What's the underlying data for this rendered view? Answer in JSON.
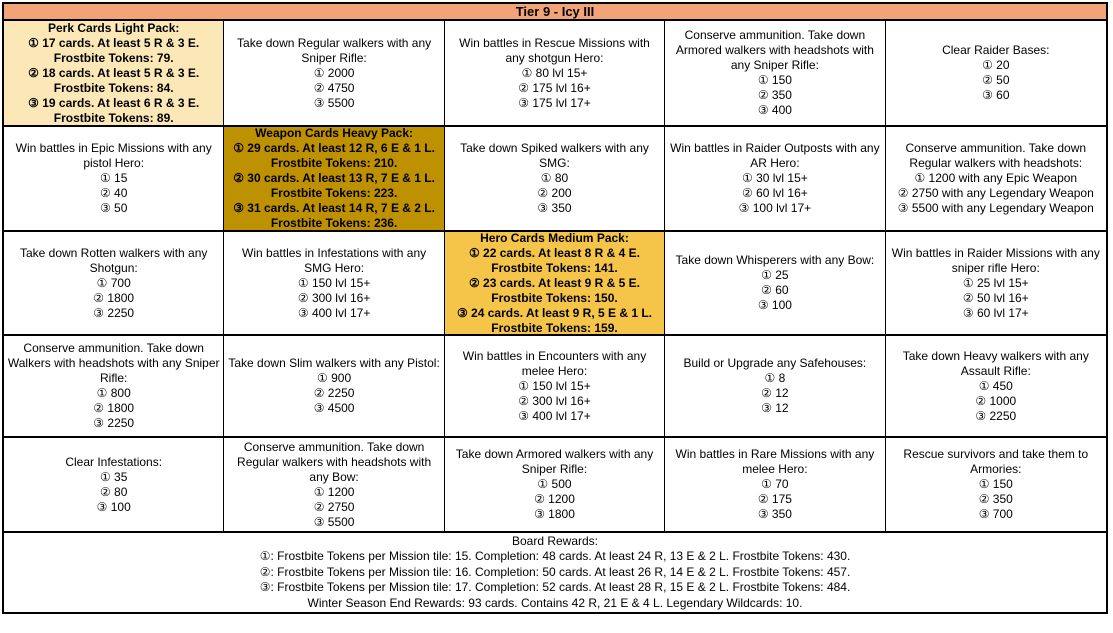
{
  "title": "Tier 9 - Icy III",
  "colors": {
    "header_bg": "#F2A478",
    "pack_light_bg": "#FBE8B6",
    "pack_heavy_bg": "#BE9100",
    "pack_medium_bg": "#F5C54A",
    "border": "#000000",
    "cell_bg": "#FFFFFF",
    "text": "#000000"
  },
  "grid": {
    "rows": [
      [
        {
          "variant": "light",
          "name": "perk-cards-light-pack",
          "lines": [
            "Perk Cards Light Pack:",
            "① 17 cards. At least 5 R & 3 E.",
            "Frostbite Tokens: 79.",
            "② 18 cards. At least 5 R & 3 E.",
            "Frostbite Tokens: 84.",
            "③ 19 cards. At least 6 R & 3 E.",
            "Frostbite Tokens: 89."
          ]
        },
        {
          "variant": "mission",
          "lines": [
            "Take down Regular walkers with any Sniper Rifle:",
            "① 2000",
            "② 4750",
            "③ 5500"
          ]
        },
        {
          "variant": "mission",
          "lines": [
            "Win battles in Rescue Missions with any shotgun Hero:",
            "① 80 lvl 15+",
            "② 175 lvl 16+",
            "③ 175 lvl 17+"
          ]
        },
        {
          "variant": "mission",
          "lines": [
            "Conserve ammunition. Take down Armored walkers with headshots with any Sniper Rifle:",
            "① 150",
            "② 350",
            "③ 400"
          ]
        },
        {
          "variant": "mission",
          "lines": [
            "Clear Raider Bases:",
            "① 20",
            "② 50",
            "③ 60"
          ]
        }
      ],
      [
        {
          "variant": "mission",
          "lines": [
            "Win battles in Epic Missions with any pistol Hero:",
            "① 15",
            "② 40",
            "③ 50"
          ]
        },
        {
          "variant": "heavy",
          "name": "weapon-cards-heavy-pack",
          "lines": [
            "Weapon Cards Heavy Pack:",
            "① 29 cards. At least 12 R, 6 E & 1 L.",
            "Frostbite Tokens: 210.",
            "② 30 cards. At least 13 R, 7 E & 1 L.",
            "Frostbite Tokens: 223.",
            "③ 31 cards. At least 14 R, 7 E & 2 L.",
            "Frostbite Tokens: 236."
          ]
        },
        {
          "variant": "mission",
          "lines": [
            "Take down Spiked walkers with any SMG:",
            "① 80",
            "② 200",
            "③ 350"
          ]
        },
        {
          "variant": "mission",
          "lines": [
            "Win battles in Raider Outposts with any AR Hero:",
            "① 30 lvl 15+",
            "② 60 lvl 16+",
            "③ 100 lvl 17+"
          ]
        },
        {
          "variant": "mission",
          "lines": [
            "Conserve ammunition. Take down Regular walkers with headshots:",
            "① 1200 with any Epic Weapon",
            "② 2750 with any Legendary Weapon",
            "③ 5500 with any Legendary Weapon"
          ]
        }
      ],
      [
        {
          "variant": "mission",
          "lines": [
            "Take down Rotten walkers with any Shotgun:",
            "① 700",
            "② 1800",
            "③ 2250"
          ]
        },
        {
          "variant": "mission",
          "lines": [
            "Win battles in Infestations with any SMG Hero:",
            "① 150 lvl 15+",
            "② 300 lvl 16+",
            "③ 400 lvl 17+"
          ]
        },
        {
          "variant": "medium",
          "name": "hero-cards-medium-pack",
          "lines": [
            "Hero Cards Medium Pack:",
            "① 22 cards. At least 8 R & 4 E.",
            "Frostbite Tokens: 141.",
            "② 23 cards. At least 9 R & 5 E.",
            "Frostbite Tokens: 150.",
            "③ 24 cards. At least 9 R, 5 E & 1 L.",
            "Frostbite Tokens: 159."
          ]
        },
        {
          "variant": "mission",
          "lines": [
            "Take down Whisperers with any Bow:",
            "① 25",
            "② 60",
            "③ 100"
          ]
        },
        {
          "variant": "mission",
          "lines": [
            "Win battles in Raider Missions with any sniper rifle Hero:",
            "① 25 lvl 15+",
            "② 50 lvl 16+",
            "③ 60 lvl 17+"
          ]
        }
      ],
      [
        {
          "variant": "mission",
          "lines": [
            "Conserve ammunition. Take down Walkers with headshots with any Sniper Rifle:",
            "① 800",
            "② 1800",
            "③ 2250"
          ]
        },
        {
          "variant": "mission",
          "lines": [
            "Take down Slim walkers with any Pistol:",
            "① 900",
            "② 2250",
            "③ 4500"
          ]
        },
        {
          "variant": "mission",
          "lines": [
            "Win battles in Encounters with any melee Hero:",
            "① 150 lvl 15+",
            "② 300 lvl 16+",
            "③ 400 lvl 17+"
          ]
        },
        {
          "variant": "mission",
          "lines": [
            "Build or Upgrade any Safehouses:",
            "① 8",
            "② 12",
            "③ 12"
          ]
        },
        {
          "variant": "mission",
          "lines": [
            "Take down Heavy walkers with any Assault Rifle:",
            "① 450",
            "② 1000",
            "③ 2250"
          ]
        }
      ],
      [
        {
          "variant": "mission",
          "lines": [
            "Clear Infestations:",
            "① 35",
            "② 80",
            "③ 100"
          ]
        },
        {
          "variant": "mission",
          "lines": [
            "Conserve ammunition. Take down Regular walkers with headshots with any Bow:",
            "① 1200",
            "② 2750",
            "③ 5500"
          ]
        },
        {
          "variant": "mission",
          "lines": [
            "Take down Armored walkers with any Sniper Rifle:",
            "① 500",
            "② 1200",
            "③ 1800"
          ]
        },
        {
          "variant": "mission",
          "lines": [
            "Win battles in Rare Missions with any melee Hero:",
            "① 70",
            "② 175",
            "③ 350"
          ]
        },
        {
          "variant": "mission",
          "lines": [
            "Rescue survivors and take them to Armories:",
            "① 150",
            "② 350",
            "③ 700"
          ]
        }
      ]
    ]
  },
  "board_rewards": {
    "title": "Board Rewards:",
    "lines": [
      "①: Frostbite Tokens per Mission tile: 15. Completion: 48 cards. At least 24 R, 13 E & 2 L. Frostbite Tokens: 430.",
      "②: Frostbite Tokens per Mission tile: 16. Completion: 50 cards. At least 26 R, 14 E & 2 L. Frostbite Tokens: 457.",
      "③: Frostbite Tokens per Mission tile: 17. Completion: 52 cards. At least 28 R, 15 E & 2 L. Frostbite Tokens: 484.",
      "Winter Season End Rewards: 93 cards. Contains 42 R, 21 E & 4 L. Legendary Wildcards: 10."
    ]
  }
}
